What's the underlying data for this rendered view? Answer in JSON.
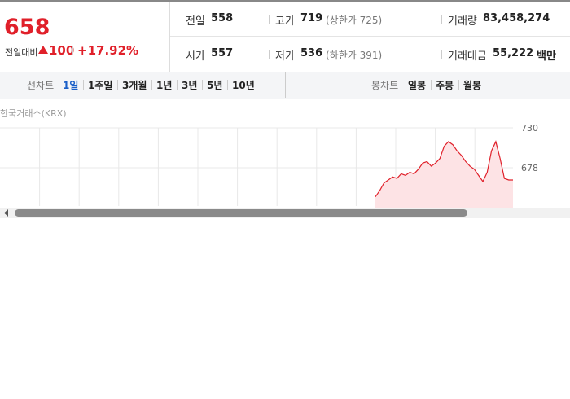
{
  "price": {
    "current": "658",
    "change_label": "전일대비",
    "change": "100",
    "change_rate": "+17.92%"
  },
  "summary": [
    [
      {
        "label": "전일",
        "value": "558"
      },
      {
        "label": "고가",
        "value": "719",
        "note": "(상한가 725)"
      },
      {
        "label": "거래량",
        "value": "83,458,274"
      }
    ],
    [
      {
        "label": "시가",
        "value": "557"
      },
      {
        "label": "저가",
        "value": "536",
        "note": "(하한가 391)"
      },
      {
        "label": "거래대금",
        "value": "55,222",
        "unit": "백만"
      }
    ]
  ],
  "tabs": {
    "line_label": "선차트",
    "periods": [
      "1일",
      "1주일",
      "3개월",
      "1년",
      "3년",
      "5년",
      "10년"
    ],
    "candle_label": "봉차트",
    "candles": [
      "일봉",
      "주봉",
      "월봉"
    ]
  },
  "chart": {
    "source": "한국거래소(KRX)",
    "ylim": [
      628,
      730
    ],
    "yticks": [
      730,
      678
    ],
    "color": "#e0202a",
    "values": [
      640,
      648,
      658,
      662,
      666,
      664,
      670,
      668,
      672,
      670,
      676,
      684,
      686,
      680,
      684,
      690,
      706,
      712,
      708,
      700,
      694,
      686,
      680,
      676,
      668,
      660,
      672,
      700,
      712,
      690,
      664,
      662,
      662
    ]
  }
}
